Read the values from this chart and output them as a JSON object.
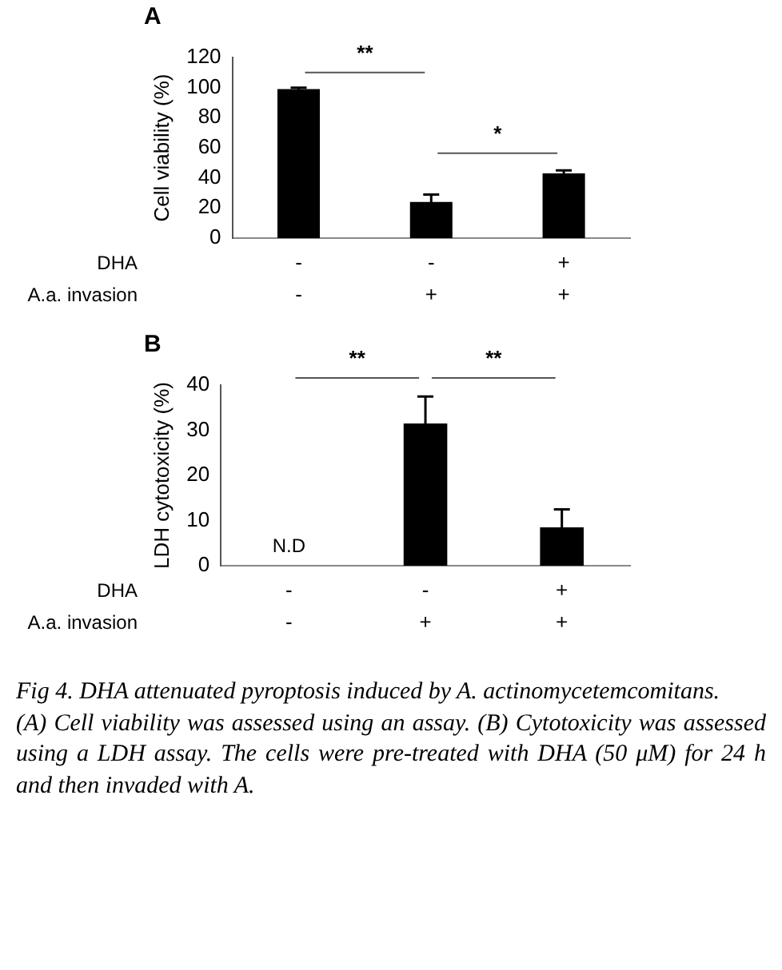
{
  "chart_data": [
    {
      "type": "bar",
      "title": "A",
      "ylabel": "Cell viability (%)",
      "xlabel": "DHA\nA.a. invasion",
      "categories": [
        "-\n-",
        "-\n+",
        "+\n+"
      ],
      "values": [
        99,
        24,
        43
      ],
      "errors": [
        1,
        5,
        2
      ],
      "color": "#000000",
      "ylim": [
        0,
        120
      ],
      "yticks": [
        0,
        20,
        40,
        60,
        80,
        100,
        120
      ],
      "grid": false,
      "legend": false,
      "annotations": [
        "**",
        "*"
      ]
    },
    {
      "type": "bar",
      "title": "B",
      "ylabel": "LDH cytotoxicity (%)",
      "xlabel": "DHA\nA.a. invasion",
      "categories": [
        "-\n-",
        "-\n+",
        "+\n+"
      ],
      "values": [
        0,
        31.5,
        8.5
      ],
      "errors": [
        null,
        6,
        4
      ],
      "color": "#000000",
      "ylim": [
        0,
        40
      ],
      "yticks": [
        0,
        10,
        20,
        30,
        40
      ],
      "grid": false,
      "legend": false,
      "annotations": [
        "**",
        "**",
        {
          "text": "N.D",
          "x": "-\n-",
          "y": 0
        }
      ]
    },
    {
      "type": "other",
      "title": "Fig 4. DHA attenuated pyroptosis induced by A. actinomycetemcomitans.",
      "annotations": [
        "(A) Cell viability was assessed using an assay. (B) Cytotoxicity was assessed using a LDH assay. The cells were pre-treated with DHA (50 μM) for 24 h and then invaded with A."
      ]
    }
  ]
}
